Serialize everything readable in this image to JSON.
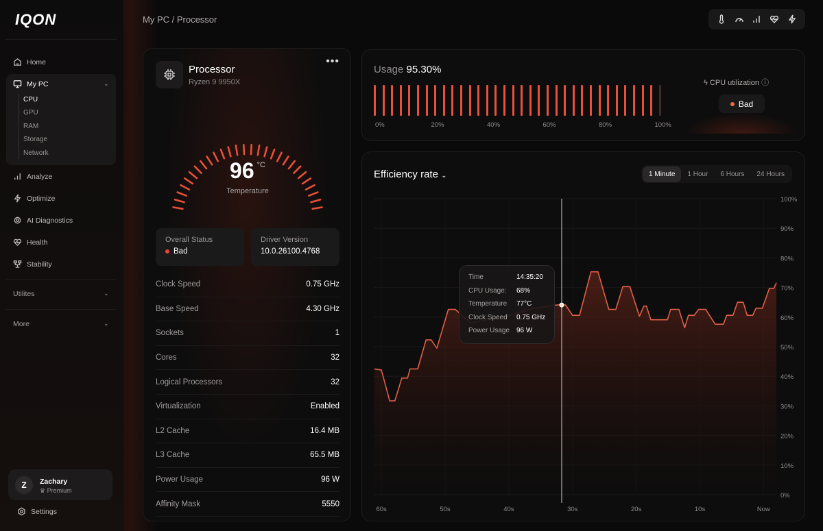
{
  "app": {
    "logo": "IQON"
  },
  "sidebar": {
    "items": [
      {
        "label": "Home",
        "icon": "home-icon"
      },
      {
        "label": "My PC",
        "icon": "monitor-icon"
      },
      {
        "label": "Analyze",
        "icon": "bars-icon"
      },
      {
        "label": "Optimize",
        "icon": "bolt-icon"
      },
      {
        "label": "AI Diagnostics",
        "icon": "chip-icon"
      },
      {
        "label": "Health",
        "icon": "heart-pulse-icon"
      },
      {
        "label": "Stability",
        "icon": "network-icon"
      }
    ],
    "mypc_sub": [
      "CPU",
      "GPU",
      "RAM",
      "Storage",
      "Network"
    ],
    "active_sub": "CPU",
    "sections": [
      "Utilites",
      "More"
    ],
    "user": {
      "initial": "Z",
      "name": "Zachary",
      "plan": "Premium"
    },
    "settings": "Settings"
  },
  "header": {
    "breadcrumb": "My PC / Processor",
    "icons": [
      "thermometer-icon",
      "gauge-icon",
      "bars-icon",
      "heart-pulse-icon",
      "bolt-icon"
    ]
  },
  "processor": {
    "title": "Processor",
    "model": "Ryzen 9 9950X",
    "temperature": {
      "value": "96",
      "unit": "°C",
      "label": "Temperature"
    },
    "overall_status": {
      "label": "Overall Status",
      "value": "Bad"
    },
    "driver": {
      "label": "Driver Version",
      "value": "10.0.26100.4768"
    },
    "specs": [
      [
        "Clock Speed",
        "0.75 GHz"
      ],
      [
        "Base Speed",
        "4.30 GHz"
      ],
      [
        "Sockets",
        "1"
      ],
      [
        "Cores",
        "32"
      ],
      [
        "Logical Processors",
        "32"
      ],
      [
        "Virtualization",
        "Enabled"
      ],
      [
        "L2 Cache",
        "16.4 MB"
      ],
      [
        "L3 Cache",
        "65.5 MB"
      ],
      [
        "Power Usage",
        "96 W"
      ],
      [
        "Affinity Mask",
        "5550"
      ]
    ]
  },
  "usage": {
    "label": "Usage",
    "value": "95.30%",
    "percent": 95.3,
    "ticks": [
      "0%",
      "20%",
      "40%",
      "60%",
      "80%",
      "100%"
    ],
    "util_label": "CPU utilization",
    "util_status": "Bad"
  },
  "colors": {
    "accent": "#e8503a",
    "bad": "#e8453c",
    "bg": "#0b0a0a"
  },
  "efficiency": {
    "title": "Efficiency rate",
    "tabs": [
      "1 Minute",
      "1 Hour",
      "6 Hours",
      "24 Hours"
    ],
    "active_tab": "1 Minute",
    "tooltip": [
      [
        "Time",
        "14:35:20"
      ],
      [
        "CPU Usage:",
        "68%"
      ],
      [
        "Temperature",
        "77°C"
      ],
      [
        "Clock Speed",
        "0.75 GHz"
      ],
      [
        "Power Usage",
        "96 W"
      ]
    ]
  },
  "chart_data": {
    "type": "area",
    "xlabels": [
      "60s",
      "50s",
      "40s",
      "30s",
      "20s",
      "10s",
      "Now"
    ],
    "xticks": [
      60,
      50,
      40,
      30,
      20,
      10,
      0
    ],
    "ylabels": [
      "100%",
      "90%",
      "80%",
      "70%",
      "60%",
      "50%",
      "40%",
      "30%",
      "20%",
      "10%",
      "0%"
    ],
    "ylim": [
      0,
      100
    ],
    "xlim": [
      61.2,
      -2
    ],
    "grid": true,
    "hover_x": 31.7,
    "points": [
      [
        61.1,
        42.5
      ],
      [
        60,
        42.1
      ],
      [
        58.7,
        31.7
      ],
      [
        57.9,
        31.7
      ],
      [
        56.8,
        39.4
      ],
      [
        55.9,
        39.4
      ],
      [
        55.5,
        42.5
      ],
      [
        54.3,
        42.5
      ],
      [
        53,
        52.3
      ],
      [
        52.2,
        52.3
      ],
      [
        51.3,
        49.5
      ],
      [
        49.5,
        62.6
      ],
      [
        48.4,
        62.6
      ],
      [
        46,
        58
      ],
      [
        41,
        60
      ],
      [
        36,
        63
      ],
      [
        32.4,
        64.1
      ],
      [
        31.1,
        64.1
      ],
      [
        30,
        60.6
      ],
      [
        28.9,
        60.6
      ],
      [
        27.1,
        75.3
      ],
      [
        26,
        75.3
      ],
      [
        24.3,
        62.6
      ],
      [
        23.2,
        62.6
      ],
      [
        22.1,
        70.3
      ],
      [
        21,
        70.3
      ],
      [
        19.5,
        60.3
      ],
      [
        18.8,
        63.7
      ],
      [
        18.4,
        63.7
      ],
      [
        17.7,
        59.1
      ],
      [
        15.1,
        59.1
      ],
      [
        14.6,
        62.6
      ],
      [
        13.3,
        62.6
      ],
      [
        12.4,
        56.4
      ],
      [
        11.8,
        60.6
      ],
      [
        10.9,
        60.6
      ],
      [
        10.2,
        62.6
      ],
      [
        9.1,
        62.6
      ],
      [
        7.6,
        57.6
      ],
      [
        6.3,
        57.6
      ],
      [
        5.8,
        60.6
      ],
      [
        4.8,
        60.6
      ],
      [
        4.1,
        65
      ],
      [
        3.2,
        65
      ],
      [
        2.6,
        60.6
      ],
      [
        1.7,
        60.6
      ],
      [
        1.2,
        63
      ],
      [
        0.2,
        63
      ],
      [
        -0.9,
        69.7
      ],
      [
        -1.6,
        69.7
      ],
      [
        -2,
        71.6
      ]
    ]
  }
}
